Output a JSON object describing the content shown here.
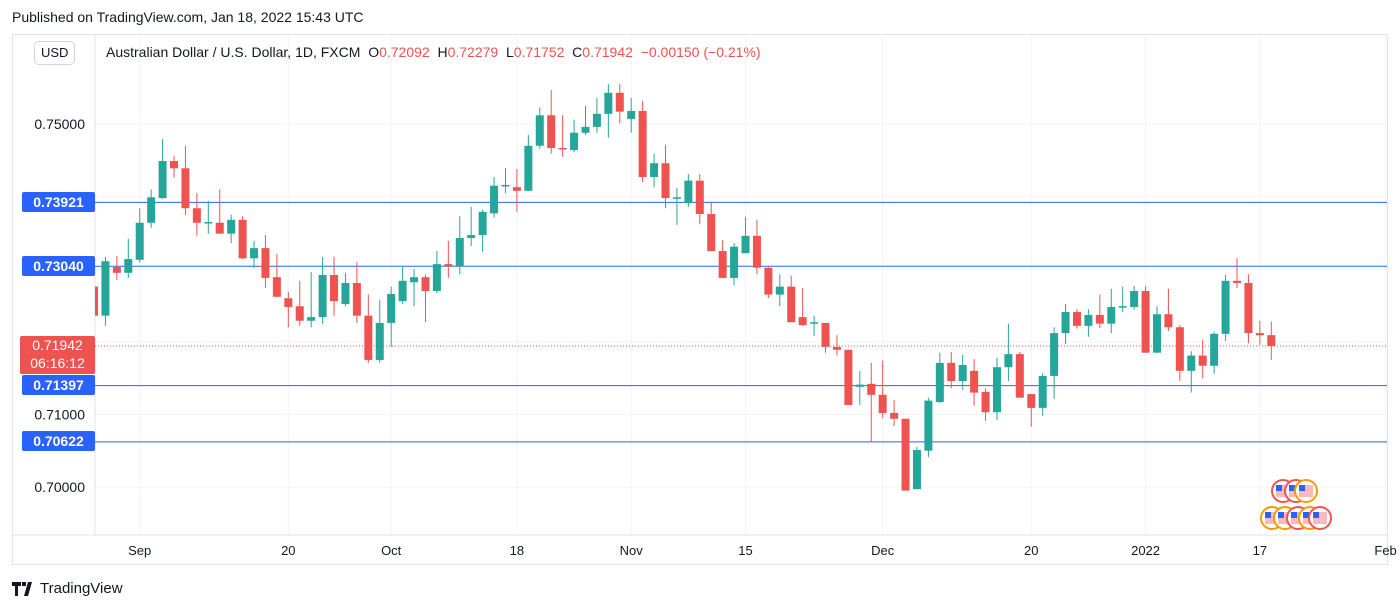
{
  "header": {
    "published": "Published on TradingView.com, Jan 18, 2022 15:43 UTC"
  },
  "currency_button": "USD",
  "legend": {
    "symbol": "Australian Dollar / U.S. Dollar, 1D, FXCM",
    "o_label": "O",
    "o": "0.72092",
    "h_label": "H",
    "h": "0.72279",
    "l_label": "L",
    "l": "0.71752",
    "c_label": "C",
    "c": "0.71942",
    "change": "−0.00150 (−0.21%)"
  },
  "last_price": {
    "value": "0.71942",
    "countdown": "06:16:12"
  },
  "footer": {
    "brand": "TradingView"
  },
  "colors": {
    "up": "#26a69a",
    "down": "#ef5350",
    "level": "#2962ff",
    "grid": "#f0f3fa"
  },
  "chart_data": {
    "type": "candlestick",
    "title": "Australian Dollar / U.S. Dollar, 1D, FXCM",
    "ylim": [
      0.6955,
      0.7575
    ],
    "y_ticks": [
      "0.75000",
      "0.71000",
      "0.70000"
    ],
    "x_ticks": [
      {
        "label": "Sep",
        "index": 4
      },
      {
        "label": "20",
        "index": 17
      },
      {
        "label": "Oct",
        "index": 26
      },
      {
        "label": "18",
        "index": 37
      },
      {
        "label": "Nov",
        "index": 47
      },
      {
        "label": "15",
        "index": 57
      },
      {
        "label": "Dec",
        "index": 69
      },
      {
        "label": "20",
        "index": 82
      },
      {
        "label": "2022",
        "index": 92
      },
      {
        "label": "17",
        "index": 102
      },
      {
        "label": "Feb",
        "index": 113
      }
    ],
    "levels": [
      "0.73921",
      "0.73040",
      "0.71397",
      "0.70622"
    ],
    "ohlc": [
      [
        0.7276,
        0.7276,
        0.7236,
        0.7236
      ],
      [
        0.7236,
        0.7317,
        0.7222,
        0.7311
      ],
      [
        0.7303,
        0.7318,
        0.7285,
        0.7295
      ],
      [
        0.7295,
        0.7342,
        0.7288,
        0.7314
      ],
      [
        0.7313,
        0.7384,
        0.7309,
        0.7364
      ],
      [
        0.7364,
        0.741,
        0.7357,
        0.7399
      ],
      [
        0.7398,
        0.7479,
        0.7397,
        0.7449
      ],
      [
        0.7449,
        0.7456,
        0.7426,
        0.7439
      ],
      [
        0.7439,
        0.747,
        0.7375,
        0.7384
      ],
      [
        0.7384,
        0.7405,
        0.7346,
        0.7364
      ],
      [
        0.7364,
        0.7394,
        0.7349,
        0.7365
      ],
      [
        0.7364,
        0.741,
        0.7349,
        0.7349
      ],
      [
        0.7349,
        0.7375,
        0.7336,
        0.7368
      ],
      [
        0.7368,
        0.7373,
        0.7314,
        0.7315
      ],
      [
        0.7315,
        0.7339,
        0.7302,
        0.7329
      ],
      [
        0.7329,
        0.7347,
        0.7274,
        0.7288
      ],
      [
        0.7289,
        0.7321,
        0.7262,
        0.7262
      ],
      [
        0.726,
        0.7269,
        0.722,
        0.7248
      ],
      [
        0.7249,
        0.7284,
        0.7222,
        0.7229
      ],
      [
        0.7229,
        0.7296,
        0.722,
        0.7234
      ],
      [
        0.7234,
        0.7317,
        0.7225,
        0.7292
      ],
      [
        0.7292,
        0.7317,
        0.7236,
        0.7256
      ],
      [
        0.7252,
        0.7295,
        0.7249,
        0.7281
      ],
      [
        0.7281,
        0.731,
        0.7226,
        0.7236
      ],
      [
        0.7236,
        0.7265,
        0.7171,
        0.7175
      ],
      [
        0.7175,
        0.7258,
        0.7171,
        0.7226
      ],
      [
        0.7226,
        0.7276,
        0.7193,
        0.7266
      ],
      [
        0.7256,
        0.7303,
        0.7252,
        0.7284
      ],
      [
        0.7282,
        0.73,
        0.7249,
        0.7289
      ],
      [
        0.7289,
        0.7293,
        0.7227,
        0.727
      ],
      [
        0.727,
        0.7325,
        0.7267,
        0.7307
      ],
      [
        0.7307,
        0.7339,
        0.7288,
        0.7304
      ],
      [
        0.7304,
        0.7373,
        0.7293,
        0.7343
      ],
      [
        0.7343,
        0.7386,
        0.7332,
        0.7347
      ],
      [
        0.7347,
        0.7382,
        0.7324,
        0.7379
      ],
      [
        0.7377,
        0.7427,
        0.7371,
        0.7415
      ],
      [
        0.7415,
        0.7439,
        0.7405,
        0.7416
      ],
      [
        0.7413,
        0.7438,
        0.7379,
        0.7408
      ],
      [
        0.7408,
        0.7485,
        0.7408,
        0.747
      ],
      [
        0.747,
        0.7523,
        0.7466,
        0.7512
      ],
      [
        0.7512,
        0.7547,
        0.7459,
        0.7467
      ],
      [
        0.7467,
        0.7512,
        0.7455,
        0.7466
      ],
      [
        0.7464,
        0.7506,
        0.7461,
        0.7488
      ],
      [
        0.7488,
        0.7525,
        0.7485,
        0.7496
      ],
      [
        0.7496,
        0.7536,
        0.7488,
        0.7514
      ],
      [
        0.7514,
        0.7555,
        0.7481,
        0.7543
      ],
      [
        0.7543,
        0.7555,
        0.7501,
        0.7517
      ],
      [
        0.7507,
        0.7536,
        0.7488,
        0.7518
      ],
      [
        0.7518,
        0.7532,
        0.742,
        0.7427
      ],
      [
        0.7427,
        0.7459,
        0.7413,
        0.7446
      ],
      [
        0.7446,
        0.7471,
        0.7384,
        0.7398
      ],
      [
        0.7398,
        0.7412,
        0.7361,
        0.7399
      ],
      [
        0.7391,
        0.7431,
        0.7386,
        0.7422
      ],
      [
        0.7422,
        0.7431,
        0.7362,
        0.7376
      ],
      [
        0.7376,
        0.7393,
        0.7325,
        0.7325
      ],
      [
        0.7325,
        0.734,
        0.7288,
        0.7288
      ],
      [
        0.7288,
        0.7336,
        0.7278,
        0.7331
      ],
      [
        0.7322,
        0.7372,
        0.7322,
        0.7346
      ],
      [
        0.7346,
        0.7368,
        0.7293,
        0.7302
      ],
      [
        0.7302,
        0.7304,
        0.726,
        0.7265
      ],
      [
        0.7265,
        0.7293,
        0.7249,
        0.7276
      ],
      [
        0.7276,
        0.7291,
        0.7227,
        0.7227
      ],
      [
        0.7234,
        0.7274,
        0.7222,
        0.7223
      ],
      [
        0.7226,
        0.7236,
        0.7208,
        0.7227
      ],
      [
        0.7226,
        0.7226,
        0.7185,
        0.7193
      ],
      [
        0.7193,
        0.7209,
        0.7181,
        0.7189
      ],
      [
        0.7189,
        0.7189,
        0.7113,
        0.7113
      ],
      [
        0.7138,
        0.716,
        0.7113,
        0.7141
      ],
      [
        0.7142,
        0.7171,
        0.7062,
        0.7127
      ],
      [
        0.7127,
        0.7174,
        0.7095,
        0.7102
      ],
      [
        0.7102,
        0.712,
        0.7084,
        0.7094
      ],
      [
        0.7094,
        0.7094,
        0.6995,
        0.6995
      ],
      [
        0.6997,
        0.7055,
        0.6997,
        0.7051
      ],
      [
        0.705,
        0.7123,
        0.7041,
        0.7119
      ],
      [
        0.7117,
        0.7185,
        0.7116,
        0.7171
      ],
      [
        0.7171,
        0.7186,
        0.7136,
        0.7146
      ],
      [
        0.7146,
        0.7182,
        0.7134,
        0.7168
      ],
      [
        0.716,
        0.7176,
        0.7112,
        0.713
      ],
      [
        0.7131,
        0.7136,
        0.7091,
        0.7103
      ],
      [
        0.7103,
        0.7178,
        0.7092,
        0.7165
      ],
      [
        0.7165,
        0.7225,
        0.7146,
        0.7183
      ],
      [
        0.7183,
        0.7186,
        0.7123,
        0.7123
      ],
      [
        0.7128,
        0.7128,
        0.7083,
        0.7109
      ],
      [
        0.7109,
        0.7157,
        0.7098,
        0.7153
      ],
      [
        0.7153,
        0.722,
        0.7121,
        0.7212
      ],
      [
        0.7212,
        0.7252,
        0.7197,
        0.7241
      ],
      [
        0.7241,
        0.7245,
        0.7218,
        0.7222
      ],
      [
        0.7222,
        0.7245,
        0.7207,
        0.7237
      ],
      [
        0.7237,
        0.7265,
        0.7219,
        0.7225
      ],
      [
        0.7225,
        0.7273,
        0.7212,
        0.7248
      ],
      [
        0.7248,
        0.7276,
        0.7241,
        0.7249
      ],
      [
        0.7248,
        0.7277,
        0.7244,
        0.727
      ],
      [
        0.727,
        0.7277,
        0.7185,
        0.7185
      ],
      [
        0.7185,
        0.7249,
        0.7185,
        0.7238
      ],
      [
        0.7238,
        0.7273,
        0.7215,
        0.722
      ],
      [
        0.722,
        0.7223,
        0.7146,
        0.716
      ],
      [
        0.716,
        0.7187,
        0.713,
        0.7181
      ],
      [
        0.7181,
        0.7203,
        0.715,
        0.7167
      ],
      [
        0.7167,
        0.7214,
        0.7156,
        0.7211
      ],
      [
        0.7211,
        0.7292,
        0.7201,
        0.7284
      ],
      [
        0.7284,
        0.7315,
        0.7274,
        0.7281
      ],
      [
        0.7281,
        0.7293,
        0.7198,
        0.7212
      ],
      [
        0.7212,
        0.7229,
        0.7196,
        0.7209
      ],
      [
        0.72092,
        0.72279,
        0.71752,
        0.71942
      ]
    ]
  }
}
